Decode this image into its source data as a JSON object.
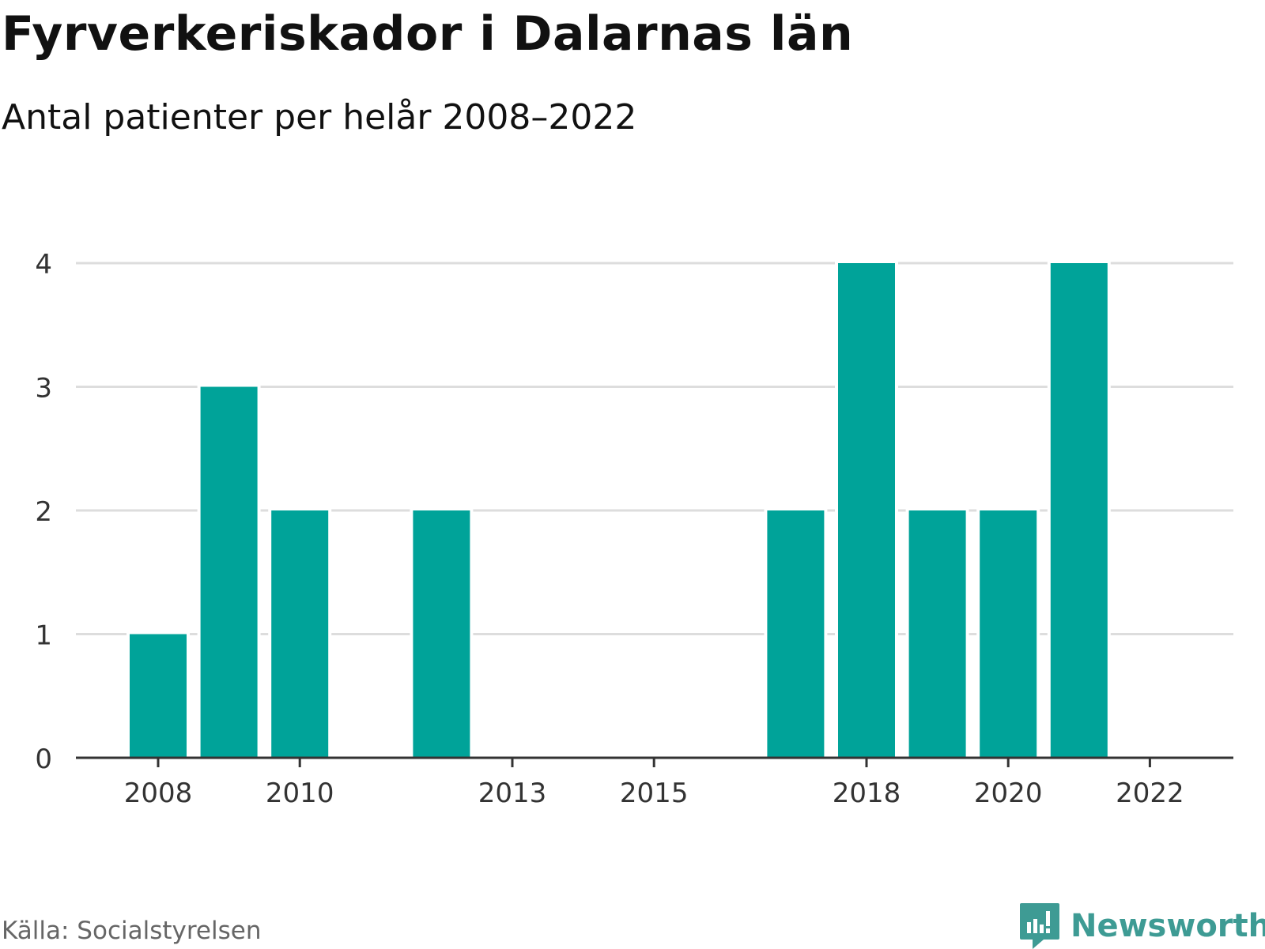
{
  "header": {
    "title": "Fyrverkeriskador i Dalarnas län",
    "subtitle": "Antal patienter per helår 2008–2022"
  },
  "footer": {
    "source": "Källa: Socialstyrelsen",
    "brand": "Newsworthy",
    "brand_icon": "chart-bubble-icon",
    "brand_color": "#3e9b94"
  },
  "colors": {
    "bar": "#00a399",
    "grid": "#dddddd",
    "axis": "#333333",
    "text": "#333333"
  },
  "chart_data": {
    "type": "bar",
    "title": "Fyrverkeriskador i Dalarnas län",
    "subtitle": "Antal patienter per helår 2008–2022",
    "categories": [
      2008,
      2009,
      2010,
      2011,
      2012,
      2013,
      2014,
      2015,
      2016,
      2017,
      2018,
      2019,
      2020,
      2021,
      2022
    ],
    "values": [
      1,
      3,
      2,
      0,
      2,
      0,
      0,
      0,
      0,
      2,
      4,
      2,
      2,
      4,
      0
    ],
    "x_tick_labels": [
      "2008",
      "2010",
      "2013",
      "2015",
      "2018",
      "2020",
      "2022"
    ],
    "y_ticks": [
      0,
      1,
      2,
      3,
      4
    ],
    "ylim": [
      0,
      4
    ],
    "xlabel": "",
    "ylabel": "",
    "grid": true,
    "legend": "none"
  }
}
